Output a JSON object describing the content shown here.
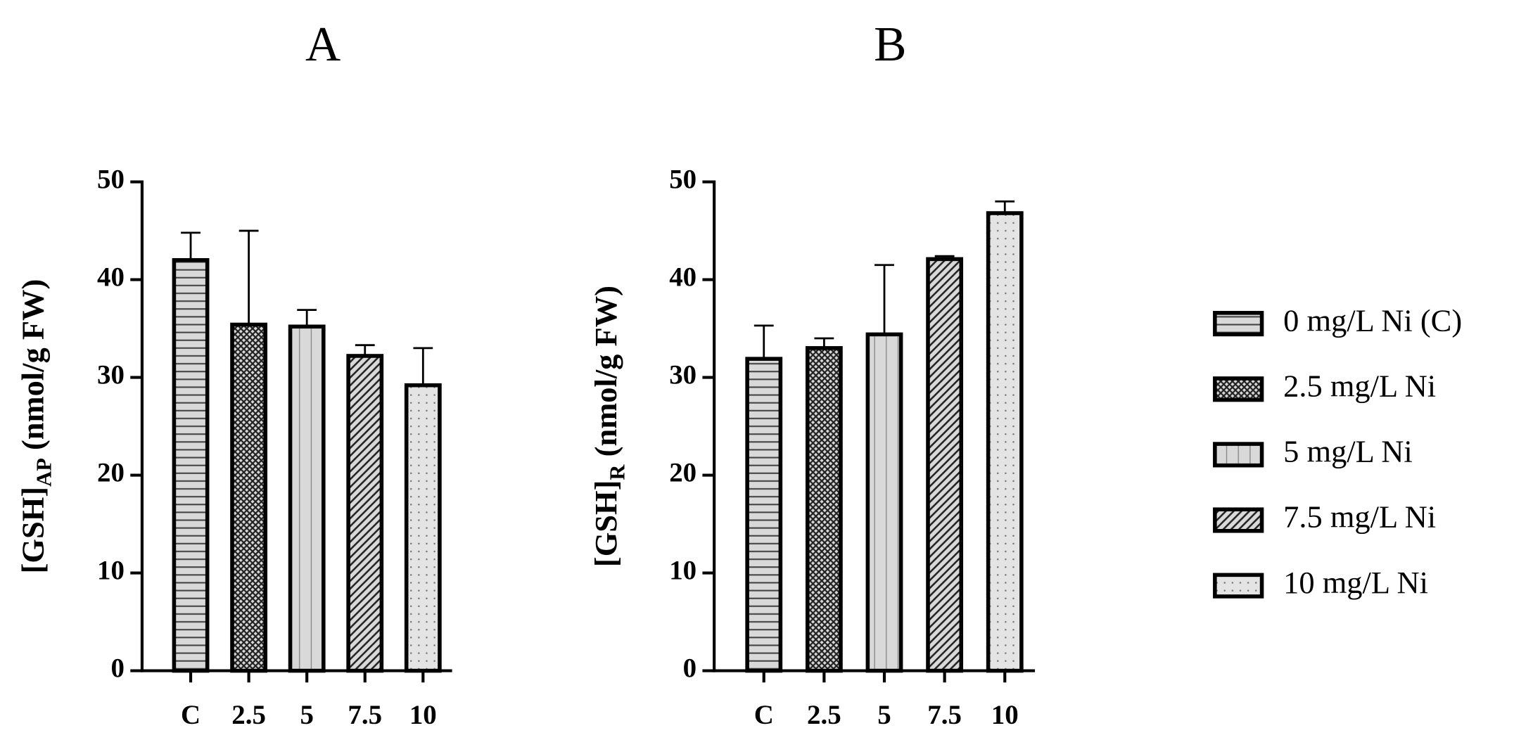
{
  "chart_data": [
    {
      "type": "bar",
      "title": "A",
      "ylabel": "[GSH]",
      "ylabel_sub": "AP",
      "ylabel_unit": " (nmol/g FW)",
      "categories": [
        "C",
        "2.5",
        "5",
        "7.5",
        "10"
      ],
      "values": [
        42,
        35.4,
        35.2,
        32.2,
        29.2
      ],
      "errors": [
        2.8,
        9.6,
        1.7,
        1.1,
        3.8
      ],
      "patterns": [
        "horizontal",
        "crosshatch",
        "vertical",
        "diagonal",
        "dots"
      ],
      "color": "#d9d9d9",
      "ylim": [
        0,
        50
      ],
      "yticks": [
        0,
        10,
        20,
        30,
        40,
        50
      ]
    },
    {
      "type": "bar",
      "title": "B",
      "ylabel": "[GSH]",
      "ylabel_sub": "R",
      "ylabel_unit": " (nmol/g FW)",
      "categories": [
        "C",
        "2.5",
        "5",
        "7.5",
        "10"
      ],
      "values": [
        31.9,
        33,
        34.4,
        42.1,
        46.8
      ],
      "errors": [
        3.4,
        1,
        7.1,
        0.3,
        1.2
      ],
      "patterns": [
        "horizontal",
        "crosshatch",
        "vertical",
        "diagonal",
        "dots"
      ],
      "color": "#d9d9d9",
      "ylim": [
        0,
        50
      ],
      "yticks": [
        0,
        10,
        20,
        30,
        40,
        50
      ],
      "legend": [
        "0 mg/L Ni (C)",
        "2.5 mg/L Ni",
        "5 mg/L Ni",
        "7.5 mg/L Ni",
        "10 mg/L Ni"
      ]
    }
  ]
}
